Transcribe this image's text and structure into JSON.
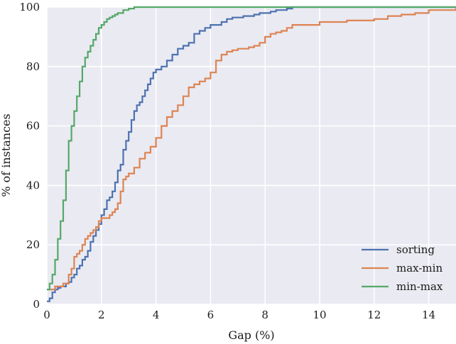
{
  "chart_data": {
    "type": "line",
    "title": "",
    "xlabel": "Gap (%)",
    "ylabel": "% of instances",
    "xlim": [
      0,
      15
    ],
    "ylim": [
      0,
      100
    ],
    "xticks": [
      0,
      2,
      4,
      6,
      8,
      10,
      12,
      14
    ],
    "yticks": [
      0,
      20,
      40,
      60,
      80,
      100
    ],
    "grid": true,
    "legend_position": "bottom-right",
    "series": [
      {
        "name": "sorting",
        "color": "#4c72b0",
        "x": [
          0,
          0.1,
          0.2,
          0.3,
          0.4,
          0.5,
          0.6,
          0.7,
          0.8,
          0.9,
          1.0,
          1.1,
          1.2,
          1.3,
          1.4,
          1.5,
          1.6,
          1.7,
          1.8,
          1.9,
          2.0,
          2.1,
          2.2,
          2.3,
          2.4,
          2.5,
          2.6,
          2.7,
          2.8,
          2.9,
          3.0,
          3.1,
          3.2,
          3.3,
          3.4,
          3.5,
          3.6,
          3.7,
          3.8,
          3.9,
          4.0,
          4.2,
          4.4,
          4.6,
          4.8,
          5.0,
          5.2,
          5.4,
          5.6,
          5.8,
          6.0,
          6.2,
          6.4,
          6.6,
          6.8,
          7.0,
          7.2,
          7.4,
          7.6,
          7.8,
          8.0,
          8.2,
          8.4,
          8.6,
          8.8,
          9.0,
          15.0
        ],
        "y": [
          1,
          2,
          4,
          5,
          5.5,
          6,
          6,
          7,
          7.5,
          9,
          10,
          12,
          13,
          15,
          16,
          18,
          21,
          23,
          25,
          27,
          30,
          32,
          35,
          36,
          38,
          41,
          45,
          47,
          52,
          55,
          58,
          62,
          65,
          67,
          68,
          70,
          72,
          74,
          76,
          78,
          79,
          80,
          82,
          84,
          86,
          87,
          88,
          91,
          92,
          93,
          94,
          94,
          95,
          96,
          96.5,
          96.5,
          97,
          97,
          97.5,
          98,
          98,
          98.5,
          99,
          99,
          99.5,
          100,
          100
        ]
      },
      {
        "name": "max-min",
        "color": "#dd8452",
        "x": [
          0,
          0.3,
          0.6,
          0.8,
          0.9,
          1.0,
          1.1,
          1.2,
          1.3,
          1.4,
          1.5,
          1.6,
          1.7,
          1.8,
          1.9,
          2.0,
          2.2,
          2.3,
          2.4,
          2.5,
          2.6,
          2.7,
          2.8,
          2.9,
          3.0,
          3.2,
          3.4,
          3.6,
          3.8,
          4.0,
          4.2,
          4.4,
          4.6,
          4.8,
          5.0,
          5.2,
          5.4,
          5.6,
          5.8,
          6.0,
          6.2,
          6.4,
          6.6,
          6.8,
          7.0,
          7.2,
          7.4,
          7.6,
          7.8,
          8.0,
          8.2,
          8.4,
          8.6,
          8.8,
          9.0,
          9.5,
          10.0,
          11.0,
          12.0,
          12.5,
          13.0,
          13.5,
          14.0,
          15.0
        ],
        "y": [
          5,
          6,
          7,
          10,
          12,
          16,
          17,
          18,
          20,
          22,
          23,
          24,
          25,
          26,
          28,
          29,
          29,
          30,
          31,
          32,
          34,
          38,
          42,
          43,
          44,
          46,
          49,
          51,
          53,
          56,
          60,
          63,
          65,
          67,
          70,
          73,
          74,
          75,
          76,
          78,
          82,
          84,
          85,
          85.5,
          86,
          86,
          86.5,
          87,
          88,
          90,
          91,
          91.5,
          92,
          93,
          94,
          94,
          95,
          95.5,
          96,
          97,
          97.5,
          98,
          99,
          100
        ]
      },
      {
        "name": "min-max",
        "color": "#55a868",
        "x": [
          0,
          0.1,
          0.2,
          0.3,
          0.4,
          0.5,
          0.6,
          0.7,
          0.8,
          0.9,
          1.0,
          1.1,
          1.2,
          1.3,
          1.4,
          1.5,
          1.6,
          1.7,
          1.8,
          1.9,
          2.0,
          2.1,
          2.2,
          2.3,
          2.4,
          2.5,
          2.6,
          2.8,
          3.0,
          3.2,
          3.4,
          15.0
        ],
        "y": [
          5,
          7,
          10,
          15,
          22,
          28,
          35,
          45,
          55,
          60,
          65,
          70,
          75,
          80,
          83,
          85,
          87,
          89,
          91,
          93,
          94,
          95,
          96,
          96.5,
          97,
          97.5,
          98,
          99,
          99.5,
          100,
          100,
          100
        ]
      }
    ]
  }
}
